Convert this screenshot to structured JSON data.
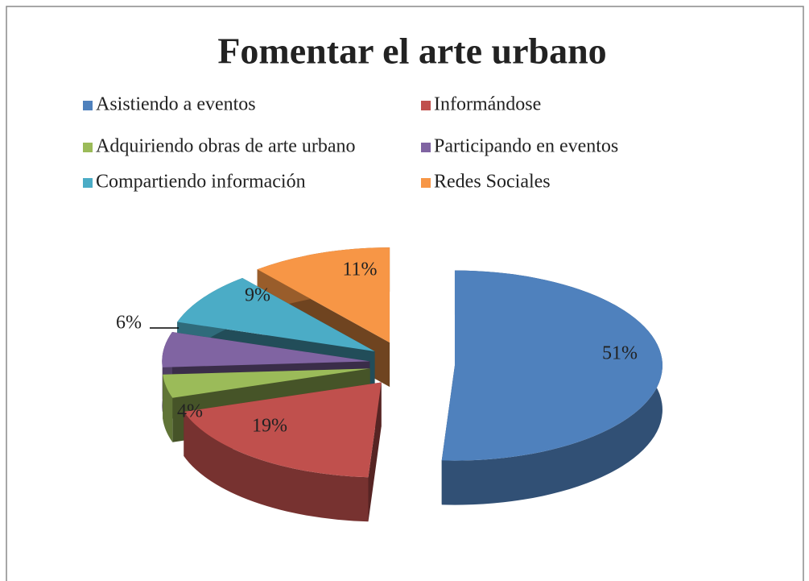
{
  "chart_data": {
    "type": "pie",
    "title": "Fomentar el arte urbano",
    "categories": [
      "Asistiendo a eventos",
      "Informándose",
      "Adquiriendo obras de arte urbano",
      "Participando en eventos",
      "Compartiendo información",
      "Redes Sociales"
    ],
    "values": [
      51,
      19,
      4,
      6,
      9,
      11
    ],
    "value_labels": [
      "51%",
      "19%",
      "4%",
      "6%",
      "9%",
      "11%"
    ],
    "colors": [
      "#4f81bd",
      "#c0504d",
      "#9bbb59",
      "#8064a2",
      "#4bacc6",
      "#f79646"
    ],
    "legend": "top"
  }
}
